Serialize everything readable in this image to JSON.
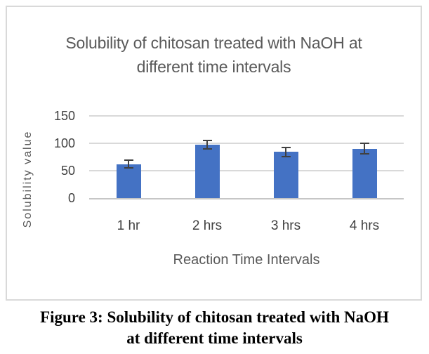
{
  "figure": {
    "chart_title_line1": "Solubility of chitosan treated with NaOH at",
    "chart_title_line2": "different time intervals",
    "caption_line1": "Figure 3: Solubility of chitosan treated with NaOH",
    "caption_line2": "at different time intervals"
  },
  "chart_data": {
    "type": "bar",
    "title": "Solubility of chitosan treated with NaOH at different time intervals",
    "categories": [
      "1 hr",
      "2 hrs",
      "3 hrs",
      "4 hrs"
    ],
    "values": [
      62,
      98,
      84,
      90
    ],
    "error_bars_plus_minus": [
      8,
      9,
      9,
      11
    ],
    "xlabel": "Reaction Time Intervals",
    "ylabel": "Solubility value",
    "ylim": [
      0,
      150
    ],
    "yticks": [
      0,
      50,
      100,
      150
    ],
    "gridlines": true,
    "legend": false,
    "bar_color": "#4472C4",
    "error_bar_color": "#404040",
    "gridline_color": "#d9d9d9",
    "axis_title_color": "#595959",
    "tick_label_color": "#404040",
    "chart_title_color": "#595959",
    "frame_border_color": "#d9d9d9"
  }
}
